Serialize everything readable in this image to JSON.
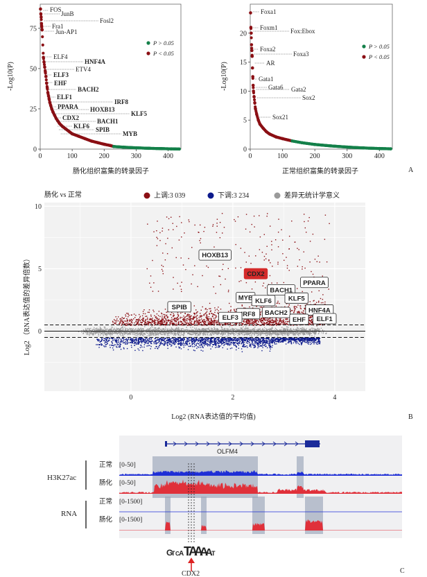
{
  "panelA": {
    "left": {
      "ylabel": "-Log10(P)",
      "xlabel": "肠化组织富集的转录因子",
      "legend": [
        "P > 0.05",
        "P < 0.05"
      ],
      "labels": [
        {
          "text": "FOS",
          "bold": false
        },
        {
          "text": "JunB",
          "bold": false
        },
        {
          "text": "Fosl2",
          "bold": false
        },
        {
          "text": "Fra1",
          "bold": false
        },
        {
          "text": "Jun-AP1",
          "bold": false
        },
        {
          "text": "ELF4",
          "bold": false
        },
        {
          "text": "HNF4A",
          "bold": true
        },
        {
          "text": "ETV4",
          "bold": false
        },
        {
          "text": "ELF3",
          "bold": true
        },
        {
          "text": "EHF",
          "bold": true
        },
        {
          "text": "BACH2",
          "bold": true
        },
        {
          "text": "ELF1",
          "bold": true
        },
        {
          "text": "IRF8",
          "bold": true
        },
        {
          "text": "PPARA",
          "bold": true
        },
        {
          "text": "HOXB13",
          "bold": true
        },
        {
          "text": "KLF5",
          "bold": true
        },
        {
          "text": "CDX2",
          "bold": true
        },
        {
          "text": "BACH1",
          "bold": true
        },
        {
          "text": "KLF6",
          "bold": true
        },
        {
          "text": "SPIB",
          "bold": true
        },
        {
          "text": "MYB",
          "bold": true
        }
      ]
    },
    "right": {
      "ylabel": "-Log10(P)",
      "xlabel": "正常组织富集的转录因子",
      "legend": [
        "P > 0.05",
        "P < 0.05"
      ],
      "labels": [
        "Foxa1",
        "Foxm1",
        "Fox:Ebox",
        "Foxa2",
        "Foxa3",
        "AR",
        "Gata1",
        "Gata6",
        "Gata2",
        "Sox2",
        "Sox21"
      ]
    },
    "panel_letter": "A"
  },
  "chart_data": [
    {
      "type": "scatter",
      "panel": "A-left",
      "xlabel": "肠化组织富集的转录因子",
      "ylabel": "-Log10(P)",
      "xlim": [
        0,
        440
      ],
      "ylim": [
        0,
        90
      ],
      "xticks": [
        "0",
        "100",
        "200",
        "300",
        "400"
      ],
      "yticks": [
        "0",
        "25",
        "50",
        "75"
      ],
      "points": [
        [
          1,
          87
        ],
        [
          2,
          84
        ],
        [
          3,
          82
        ],
        [
          4,
          78
        ],
        [
          5,
          76
        ],
        [
          6,
          74
        ],
        [
          10,
          57
        ],
        [
          12,
          54
        ],
        [
          14,
          51
        ],
        [
          16,
          48
        ],
        [
          18,
          45
        ],
        [
          20,
          41
        ],
        [
          22,
          38
        ],
        [
          24,
          35
        ],
        [
          26,
          33
        ],
        [
          28,
          31
        ],
        [
          30,
          29
        ],
        [
          33,
          27
        ],
        [
          36,
          25
        ],
        [
          40,
          23
        ],
        [
          45,
          21
        ],
        [
          50,
          19
        ],
        [
          55,
          17.5
        ],
        [
          60,
          16
        ],
        [
          70,
          14
        ],
        [
          80,
          12.5
        ],
        [
          90,
          11
        ],
        [
          100,
          9.5
        ],
        [
          120,
          8
        ],
        [
          140,
          6.5
        ],
        [
          160,
          5
        ],
        [
          180,
          4
        ],
        [
          200,
          3
        ],
        [
          220,
          2.2
        ],
        [
          230,
          1.6
        ],
        [
          260,
          1.2
        ],
        [
          300,
          0.8
        ],
        [
          340,
          0.5
        ],
        [
          380,
          0.3
        ],
        [
          410,
          0.15
        ],
        [
          435,
          0.05
        ]
      ]
    },
    {
      "type": "scatter",
      "panel": "A-right",
      "xlabel": "正常组织富集的转录因子",
      "ylabel": "-Log10(P)",
      "xlim": [
        0,
        440
      ],
      "ylim": [
        0,
        25
      ],
      "xticks": [
        "0",
        "100",
        "200",
        "300",
        "400"
      ],
      "yticks": [
        "0",
        "5",
        "10",
        "15",
        "20"
      ],
      "points": [
        [
          1,
          23.5
        ],
        [
          2,
          21
        ],
        [
          3,
          20
        ],
        [
          4,
          18
        ],
        [
          5,
          17
        ],
        [
          6,
          16
        ],
        [
          7,
          14
        ],
        [
          8,
          12.5
        ],
        [
          9,
          11
        ],
        [
          10,
          10
        ],
        [
          12,
          9
        ],
        [
          14,
          8
        ],
        [
          16,
          7
        ],
        [
          20,
          6
        ],
        [
          25,
          5
        ],
        [
          30,
          4.3
        ],
        [
          40,
          3.6
        ],
        [
          50,
          3
        ],
        [
          60,
          2.6
        ],
        [
          80,
          2.1
        ],
        [
          100,
          1.8
        ],
        [
          130,
          1.4
        ],
        [
          160,
          1.1
        ],
        [
          200,
          0.8
        ],
        [
          250,
          0.55
        ],
        [
          300,
          0.35
        ],
        [
          350,
          0.2
        ],
        [
          400,
          0.1
        ],
        [
          435,
          0.05
        ]
      ]
    },
    {
      "type": "scatter",
      "panel": "B",
      "title": "肠化 vs 正常",
      "xlabel": "Log2 (RNA表达值的平均值)",
      "ylabel": "Log2 （RNA表达值的差异倍数）",
      "xlim": [
        -1.7,
        4.6
      ],
      "ylim": [
        -4.8,
        10.3
      ],
      "xticks": [
        "0",
        "2",
        "4"
      ],
      "yticks": [
        "0",
        "5",
        "10"
      ],
      "series": [
        {
          "name": "上调:3 039",
          "color": "#8b0f14"
        },
        {
          "name": "下调:3 234",
          "color": "#0d1a8c"
        },
        {
          "name": "差异无统计学意义",
          "color": "#9a9a9a"
        }
      ],
      "threshold_lines": [
        0.5,
        -0.5
      ],
      "gene_labels": [
        {
          "name": "HOXB13",
          "x": 1.65,
          "y": 6.1
        },
        {
          "name": "CDX2",
          "x": 2.45,
          "y": 4.6,
          "highlight": true
        },
        {
          "name": "PPARA",
          "x": 3.6,
          "y": 3.9
        },
        {
          "name": "BACH1",
          "x": 2.95,
          "y": 3.3
        },
        {
          "name": "MYB",
          "x": 2.25,
          "y": 2.7
        },
        {
          "name": "KLF6",
          "x": 2.6,
          "y": 2.45
        },
        {
          "name": "KLF5",
          "x": 3.25,
          "y": 2.65
        },
        {
          "name": "SPIB",
          "x": 0.95,
          "y": 1.95
        },
        {
          "name": "IRF8",
          "x": 2.3,
          "y": 1.4
        },
        {
          "name": "BACH2",
          "x": 2.85,
          "y": 1.5
        },
        {
          "name": "ELF3",
          "x": 1.95,
          "y": 1.1
        },
        {
          "name": "HNF4A",
          "x": 3.7,
          "y": 1.7
        },
        {
          "name": "EHF",
          "x": 3.3,
          "y": 0.95
        },
        {
          "name": "ELF1",
          "x": 3.8,
          "y": 1.0
        }
      ]
    }
  ],
  "panelB": {
    "title": "肠化 vs 正常",
    "legend": [
      {
        "label": "上调:3 039",
        "color": "#8b0f14"
      },
      {
        "label": "下调:3 234",
        "color": "#0d1a8c"
      },
      {
        "label": "差异无统计学意义",
        "color": "#9a9a9a"
      }
    ],
    "xlabel": "Log2 (RNA表达值的平均值)",
    "ylabel": "Log2 （RNA表达值的差异倍数）",
    "panel_letter": "B"
  },
  "panelC": {
    "gene": "OLFM4",
    "groups": [
      "H3K27ac",
      "RNA"
    ],
    "tracks": [
      {
        "name": "正常",
        "range": "[0-50]"
      },
      {
        "name": "肠化",
        "range": "[0-50]"
      },
      {
        "name": "正常",
        "range": "[0-1500]"
      },
      {
        "name": "肠化",
        "range": "[0-1500]"
      }
    ],
    "motif_label": "CDX2",
    "motif_letters": [
      "G",
      "T",
      "C",
      "A",
      "T",
      "A",
      "A",
      "A",
      "A",
      "T"
    ],
    "panel_letter": "C",
    "colors": {
      "h3k_normal": "#1f2fd6",
      "h3k_im": "#e0303a",
      "rna_im": "#e0303a",
      "highlight": "#9aa4b8"
    }
  }
}
